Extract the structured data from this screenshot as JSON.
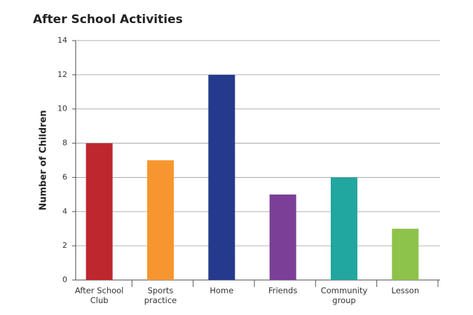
{
  "chart_data": {
    "type": "bar",
    "title": "After School Activities",
    "y_label": "Number of Children",
    "categories": [
      "After School Club",
      "Sports practice",
      "Home",
      "Friends",
      "Community group",
      "Lesson"
    ],
    "values": [
      8,
      7,
      12,
      5,
      6,
      3
    ],
    "colors": [
      "#be272d",
      "#f7962f",
      "#253a8c",
      "#7b3f98",
      "#22a6a0",
      "#8dc24b"
    ],
    "ylim": [
      0,
      14
    ],
    "yticks": [
      0,
      2,
      4,
      6,
      8,
      10,
      12,
      14
    ],
    "grid": true
  }
}
